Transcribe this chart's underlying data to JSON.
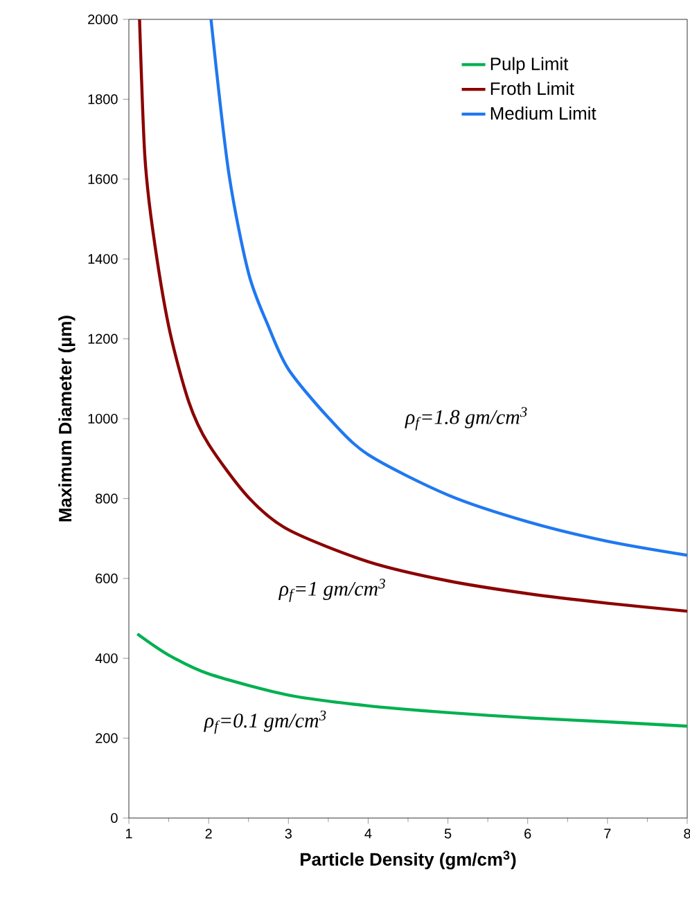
{
  "chart_data": {
    "type": "line",
    "xlabel": "Particle Density (gm/cm$^{3}$)",
    "ylabel": "Maximum Diameter (µm)",
    "xlim": [
      1,
      8
    ],
    "ylim": [
      0,
      2000
    ],
    "xticks": [
      1,
      2,
      3,
      4,
      5,
      6,
      7,
      8
    ],
    "yticks": [
      0,
      200,
      400,
      600,
      800,
      1000,
      1200,
      1400,
      1600,
      1800,
      2000
    ],
    "legend": "top right",
    "grid": false,
    "series": [
      {
        "name": "Pulp Limit",
        "color": "#00b050",
        "x": [
          1.107,
          1.5,
          2,
          3,
          4,
          5,
          6,
          7,
          8
        ],
        "values": [
          461,
          408,
          361,
          308,
          281,
          264,
          251,
          241,
          230
        ]
      },
      {
        "name": "Froth Limit",
        "color": "#8b0000",
        "x": [
          1.134,
          1.2,
          1.3,
          1.5,
          1.75,
          2,
          2.5,
          3,
          4,
          5,
          6,
          7,
          8
        ],
        "values": [
          2000,
          1659,
          1472,
          1231,
          1043,
          936,
          803,
          722,
          642,
          594,
          562,
          538,
          518
        ]
      },
      {
        "name": "Medium Limit",
        "color": "#1f78f0",
        "x": [
          2.03,
          2.25,
          2.5,
          2.75,
          3,
          3.5,
          4,
          5,
          6,
          7,
          8
        ],
        "values": [
          2000,
          1619,
          1365,
          1231,
          1124,
          1003,
          910,
          809,
          742,
          693,
          658
        ]
      }
    ],
    "annotations": [
      "ρ$_{f}$=1.8 gm/cm$^{3}$",
      "ρ$_{f}$=1 gm/cm$^{3}$",
      "ρ$_{f}$=0.1 gm/cm$^{3}$"
    ]
  }
}
